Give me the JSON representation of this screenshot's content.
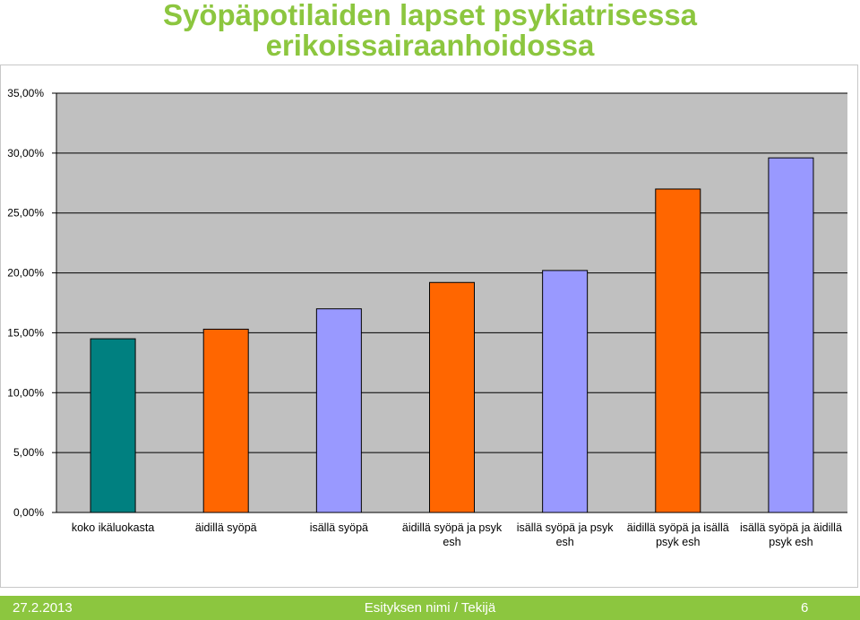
{
  "slide": {
    "title_line1": "Syöpäpotilaiden lapset psykiatrisessa",
    "title_line2": "erikoissairaanhoidossa",
    "title_color": "#8cc63f"
  },
  "footer": {
    "date": "27.2.2013",
    "center": "Esityksen nimi / Tekijä",
    "page": "6",
    "background_color": "#8cc63f"
  },
  "chart_data": {
    "type": "bar",
    "title": "",
    "xlabel": "",
    "ylabel": "",
    "ylim": [
      0,
      35
    ],
    "ytick_values": [
      0,
      5,
      10,
      15,
      20,
      25,
      30,
      35
    ],
    "ytick_labels": [
      "0,00%",
      "5,00%",
      "10,00%",
      "15,00%",
      "20,00%",
      "25,00%",
      "30,00%",
      "35,00%"
    ],
    "grid": true,
    "plot_background": "#c0c0c0",
    "categories": [
      [
        "koko ikäluokasta"
      ],
      [
        "äidillä syöpä"
      ],
      [
        "isällä syöpä"
      ],
      [
        "äidillä syöpä ja psyk",
        "esh"
      ],
      [
        "isällä syöpä ja psyk",
        "esh"
      ],
      [
        "äidillä syöpä ja isällä",
        "psyk esh"
      ],
      [
        "isällä syöpä ja äidillä",
        "psyk esh"
      ]
    ],
    "values": [
      14.5,
      15.3,
      17.0,
      19.2,
      20.2,
      27.0,
      29.6
    ],
    "colors": [
      "#008080",
      "#ff6600",
      "#9999ff",
      "#ff6600",
      "#9999ff",
      "#ff6600",
      "#9999ff"
    ]
  }
}
